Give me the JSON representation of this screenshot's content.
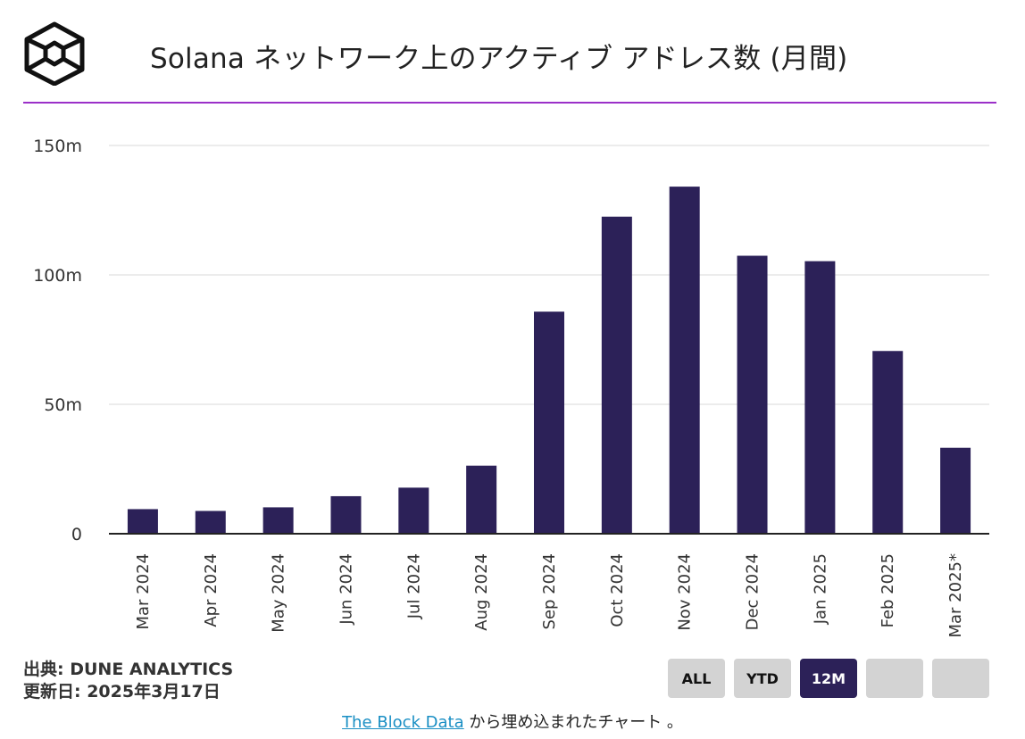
{
  "title": "Solana ネットワーク上のアクティブ アドレス数 (月間)",
  "colors": {
    "bar": "#2c2158",
    "rule": "#9b30c8",
    "grid": "#e6e6e6",
    "axis": "#222222"
  },
  "chart_data": {
    "type": "bar",
    "title": "Solana ネットワーク上のアクティブ アドレス数 (月間)",
    "xlabel": "",
    "ylabel": "",
    "ylim": [
      0,
      150
    ],
    "y_unit": "millions",
    "yticks": [
      0,
      50,
      100,
      150
    ],
    "ytick_labels": [
      "0",
      "50m",
      "100m",
      "150m"
    ],
    "categories": [
      "Mar 2024",
      "Apr 2024",
      "May 2024",
      "Jun 2024",
      "Jul 2024",
      "Aug 2024",
      "Sep 2024",
      "Oct 2024",
      "Nov 2024",
      "Dec 2024",
      "Jan 2025",
      "Feb 2025",
      "Mar 2025*"
    ],
    "values": [
      9.5,
      8.8,
      10.2,
      14.5,
      17.8,
      26.3,
      85.8,
      122.5,
      134.1,
      107.4,
      105.3,
      70.6,
      33.2
    ],
    "grid": true
  },
  "source": {
    "line1": "出典: DUNE ANALYTICS",
    "line2": "更新日: 2025年3月17日"
  },
  "range_buttons": [
    "ALL",
    "YTD",
    "12M",
    "",
    ""
  ],
  "active_range": "12M",
  "footer": {
    "link_text": "The Block Data",
    "suffix": " から埋め込まれたチャート 。"
  }
}
